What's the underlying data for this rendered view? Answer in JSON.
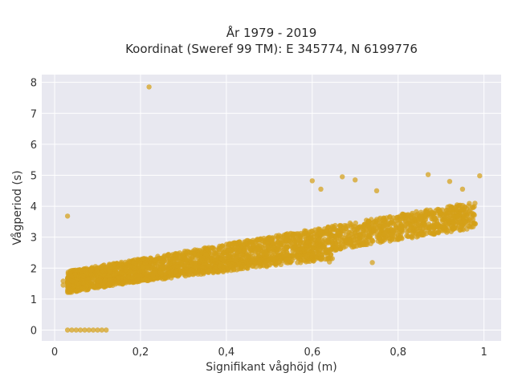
{
  "chart_data": {
    "type": "scatter",
    "title": "År 1979 - 2019",
    "subtitle": "Koordinat (Sweref 99 TM): E 345774, N 6199776",
    "xlabel": "Signifikant våghöjd (m)",
    "ylabel": "Vågperiod (s)",
    "xlim": [
      -0.03,
      1.04
    ],
    "ylim": [
      -0.35,
      8.25
    ],
    "x_ticks": [
      0,
      0.2,
      0.4,
      0.6,
      0.8,
      1
    ],
    "x_tick_labels": [
      "0",
      "0,2",
      "0,4",
      "0,6",
      "0,8",
      "1"
    ],
    "y_ticks": [
      0,
      1,
      2,
      3,
      4,
      5,
      6,
      7,
      8
    ],
    "y_tick_labels": [
      "0",
      "1",
      "2",
      "3",
      "4",
      "5",
      "6",
      "7",
      "8"
    ],
    "grid": true,
    "marker_color": "#D4A017",
    "background_color": "#E8E8F0",
    "bands": [
      {
        "x_from": 0.03,
        "x_to": 0.98,
        "y_low_from": 1.2,
        "y_low_to": 3.3,
        "y_high_from": 1.9,
        "y_high_to": 4.15,
        "count": 2600
      },
      {
        "x_from": 0.1,
        "x_to": 0.65,
        "y_low_from": 1.4,
        "y_low_to": 2.3,
        "y_high_from": 1.6,
        "y_high_to": 2.6,
        "count": 500
      }
    ],
    "points": [
      {
        "x": 0.22,
        "y": 7.85
      },
      {
        "x": 0.03,
        "y": 3.68
      },
      {
        "x": 0.87,
        "y": 5.02
      },
      {
        "x": 0.99,
        "y": 4.98
      },
      {
        "x": 0.67,
        "y": 4.95
      },
      {
        "x": 0.7,
        "y": 4.85
      },
      {
        "x": 0.6,
        "y": 4.82
      },
      {
        "x": 0.62,
        "y": 4.55
      },
      {
        "x": 0.75,
        "y": 4.5
      },
      {
        "x": 0.92,
        "y": 4.8
      },
      {
        "x": 0.95,
        "y": 4.55
      },
      {
        "x": 0.74,
        "y": 2.18
      },
      {
        "x": 0.64,
        "y": 2.2
      },
      {
        "x": 0.58,
        "y": 2.25
      },
      {
        "x": 0.55,
        "y": 2.22
      },
      {
        "x": 0.02,
        "y": 1.58
      },
      {
        "x": 0.03,
        "y": 1.52
      },
      {
        "x": 0.02,
        "y": 1.45
      },
      {
        "x": 0.03,
        "y": 0
      },
      {
        "x": 0.04,
        "y": 0
      },
      {
        "x": 0.05,
        "y": 0
      },
      {
        "x": 0.06,
        "y": 0
      },
      {
        "x": 0.07,
        "y": 0
      },
      {
        "x": 0.08,
        "y": 0
      },
      {
        "x": 0.09,
        "y": 0
      },
      {
        "x": 0.1,
        "y": 0
      },
      {
        "x": 0.11,
        "y": 0
      },
      {
        "x": 0.12,
        "y": 0
      }
    ]
  }
}
